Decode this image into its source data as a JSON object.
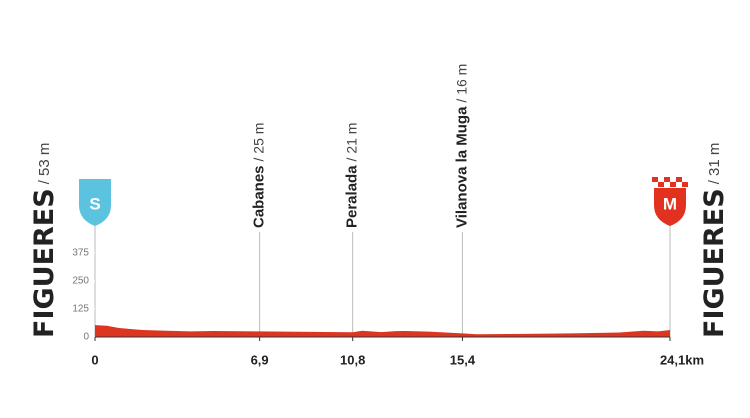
{
  "chart_data": {
    "type": "area",
    "start": {
      "badge": "S",
      "name": "FIGUERES",
      "altitude": 53,
      "altitude_label": "/ 53 m",
      "color": "#5bc3e0"
    },
    "finish": {
      "badge": "M",
      "name": "FIGUERES",
      "altitude": 31,
      "altitude_label": "/ 31 m",
      "color": "#e2321f"
    },
    "places": [
      {
        "km": 6.9,
        "name": "Cabanes",
        "altitude": 25,
        "altitude_label": "/ 25 m"
      },
      {
        "km": 10.8,
        "name": "Peralada",
        "altitude": 21,
        "altitude_label": "/ 21 m"
      },
      {
        "km": 15.4,
        "name": "Vilanova la Muga",
        "altitude": 16,
        "altitude_label": "/ 16 m"
      }
    ],
    "x": [
      0,
      0.5,
      1,
      2,
      3,
      4,
      5,
      6.9,
      8,
      10.2,
      10.8,
      11.2,
      12,
      12.6,
      13,
      14,
      15.4,
      16,
      18,
      20,
      22,
      23,
      23.6,
      24.1
    ],
    "values": [
      53,
      50,
      40,
      31,
      28,
      25,
      27,
      25,
      24,
      22,
      21,
      28,
      22,
      26,
      27,
      24,
      16,
      12,
      14,
      16,
      20,
      28,
      25,
      31
    ],
    "color": "#dc3520",
    "xlim": [
      0,
      24.1
    ],
    "xticks": [
      0,
      {
        "value": 6.9,
        "label": "6,9"
      },
      {
        "value": 10.8,
        "label": "10,8"
      },
      {
        "value": 15.4,
        "label": "15,4"
      },
      {
        "value": 24.1,
        "label": "24,1km"
      }
    ],
    "ylim": [
      0,
      375
    ],
    "yticks": [
      0,
      125,
      250,
      375
    ],
    "grid": false
  }
}
